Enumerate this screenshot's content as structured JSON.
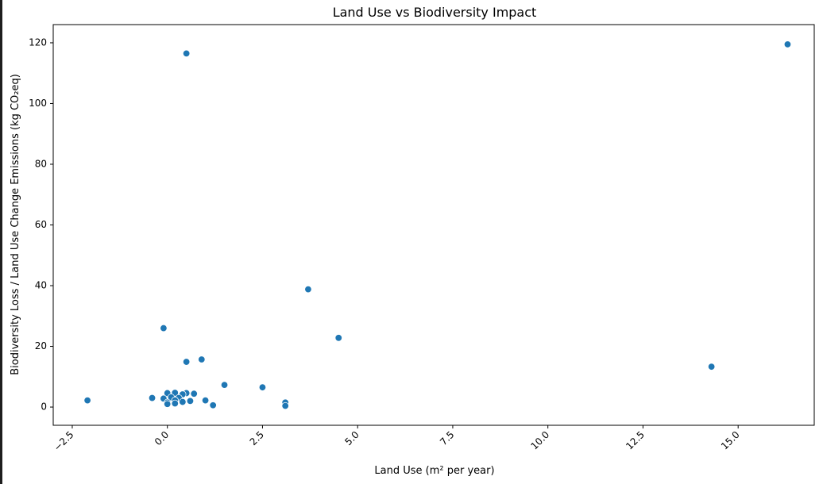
{
  "chart_data": {
    "type": "scatter",
    "title": "Land Use vs Biodiversity Impact",
    "xlabel": "Land Use (m² per year)",
    "ylabel": "Biodiversity Loss / Land Use Change Emissions (kg CO₂eq)",
    "xlim": [
      -3.0,
      17.0
    ],
    "ylim": [
      -6.0,
      126.0
    ],
    "xticks": [
      -2.5,
      0.0,
      2.5,
      5.0,
      7.5,
      10.0,
      12.5,
      15.0
    ],
    "xtick_labels": [
      "−2.5",
      "0.0",
      "2.5",
      "5.0",
      "7.5",
      "10.0",
      "12.5",
      "15.0"
    ],
    "yticks": [
      0,
      20,
      40,
      60,
      80,
      100,
      120
    ],
    "ytick_labels": [
      "0",
      "20",
      "40",
      "60",
      "80",
      "100",
      "120"
    ],
    "grid": false,
    "marker_color": "#1f77b4",
    "points": [
      {
        "x": 16.3,
        "y": 119.5
      },
      {
        "x": 0.5,
        "y": 116.5
      },
      {
        "x": 3.7,
        "y": 38.8
      },
      {
        "x": -0.1,
        "y": 26.0
      },
      {
        "x": 4.5,
        "y": 22.8
      },
      {
        "x": 0.9,
        "y": 15.7
      },
      {
        "x": 0.5,
        "y": 14.9
      },
      {
        "x": 14.3,
        "y": 13.3
      },
      {
        "x": 1.5,
        "y": 7.3
      },
      {
        "x": 2.5,
        "y": 6.5
      },
      {
        "x": 0.0,
        "y": 4.6
      },
      {
        "x": 0.2,
        "y": 4.7
      },
      {
        "x": 0.5,
        "y": 4.6
      },
      {
        "x": 0.7,
        "y": 4.4
      },
      {
        "x": 0.4,
        "y": 4.2
      },
      {
        "x": 0.1,
        "y": 3.2
      },
      {
        "x": -0.4,
        "y": 3.0
      },
      {
        "x": -0.1,
        "y": 2.8
      },
      {
        "x": 0.3,
        "y": 3.0
      },
      {
        "x": 0.2,
        "y": 2.2
      },
      {
        "x": -2.1,
        "y": 2.2
      },
      {
        "x": 1.0,
        "y": 2.2
      },
      {
        "x": 0.6,
        "y": 2.0
      },
      {
        "x": 0.4,
        "y": 1.7
      },
      {
        "x": 0.0,
        "y": 1.5
      },
      {
        "x": 3.1,
        "y": 1.5
      },
      {
        "x": 0.0,
        "y": 1.0
      },
      {
        "x": 0.2,
        "y": 1.2
      },
      {
        "x": 1.2,
        "y": 0.6
      },
      {
        "x": 3.1,
        "y": 0.4
      }
    ]
  }
}
